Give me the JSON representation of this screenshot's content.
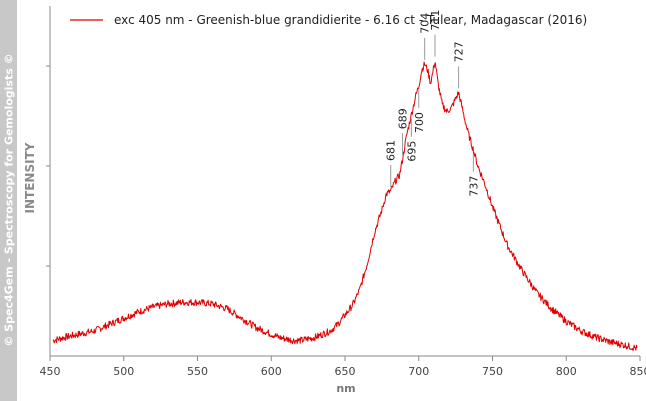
{
  "watermark": "© Spec4Gem - Spectroscopy for Gemologists ©",
  "colors": {
    "series": "#e00000",
    "axis": "#888888",
    "peak_line": "#9a9a9a",
    "sidebar": "#c8c8c8"
  },
  "chart_data": {
    "type": "line",
    "xlabel": "nm",
    "ylabel": "INTENSITY",
    "xlim": [
      450,
      850
    ],
    "ylim": [
      0,
      1
    ],
    "xticks": [
      450,
      500,
      550,
      600,
      650,
      700,
      750,
      800,
      850
    ],
    "grid": false,
    "legend_position": "top-left",
    "series": [
      {
        "name": "exc 405 nm - Greenish-blue grandidierite - 6.16 ct - Tulear, Madagascar (2016)",
        "x": [
          452,
          460,
          470,
          480,
          490,
          500,
          510,
          520,
          530,
          540,
          550,
          560,
          570,
          580,
          590,
          600,
          605,
          610,
          615,
          620,
          625,
          630,
          635,
          640,
          645,
          650,
          655,
          660,
          665,
          670,
          675,
          678,
          681,
          684,
          687,
          689,
          692,
          695,
          698,
          700,
          702,
          704,
          706,
          708,
          709,
          711,
          713,
          716,
          719,
          722,
          725,
          727,
          730,
          733,
          737,
          740,
          745,
          750,
          755,
          760,
          770,
          780,
          790,
          800,
          810,
          820,
          830,
          840,
          848
        ],
        "y": [
          0.03,
          0.04,
          0.05,
          0.06,
          0.08,
          0.1,
          0.12,
          0.135,
          0.145,
          0.15,
          0.15,
          0.145,
          0.13,
          0.1,
          0.07,
          0.05,
          0.04,
          0.035,
          0.03,
          0.03,
          0.035,
          0.04,
          0.05,
          0.06,
          0.08,
          0.11,
          0.14,
          0.19,
          0.27,
          0.37,
          0.44,
          0.49,
          0.5,
          0.53,
          0.55,
          0.6,
          0.68,
          0.74,
          0.8,
          0.83,
          0.88,
          0.9,
          0.88,
          0.84,
          0.86,
          0.91,
          0.84,
          0.77,
          0.75,
          0.76,
          0.79,
          0.81,
          0.75,
          0.69,
          0.63,
          0.58,
          0.52,
          0.45,
          0.39,
          0.33,
          0.25,
          0.18,
          0.13,
          0.09,
          0.06,
          0.04,
          0.025,
          0.015,
          0.005
        ]
      }
    ],
    "annotations": [
      {
        "x": 681,
        "text": "681",
        "side": "above"
      },
      {
        "x": 689,
        "text": "689",
        "side": "above"
      },
      {
        "x": 695,
        "text": "695",
        "side": "below"
      },
      {
        "x": 700,
        "text": "700",
        "side": "below"
      },
      {
        "x": 704,
        "text": "704",
        "side": "above"
      },
      {
        "x": 711,
        "text": "711",
        "side": "above"
      },
      {
        "x": 727,
        "text": "727",
        "side": "above"
      },
      {
        "x": 737,
        "text": "737",
        "side": "below"
      }
    ]
  }
}
